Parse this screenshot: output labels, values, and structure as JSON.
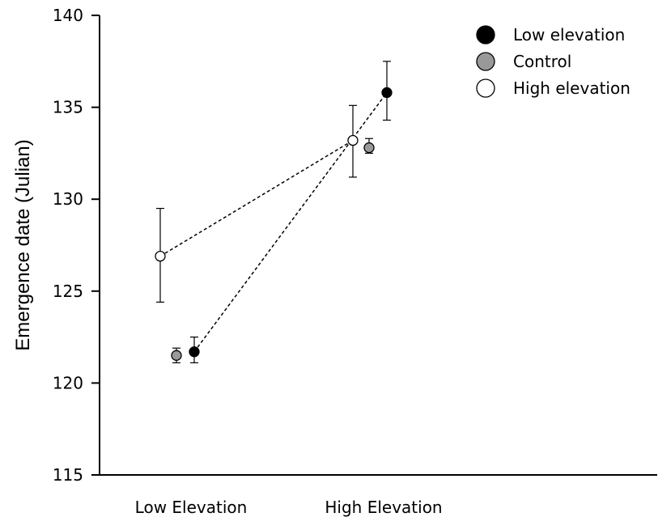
{
  "chart_data": {
    "type": "scatter",
    "title": "",
    "xlabel": "",
    "ylabel": "Emergence date (Julian)",
    "categories": [
      "Low Elevation",
      "High Elevation"
    ],
    "ylim": [
      115,
      140
    ],
    "yticks": [
      "115",
      "120",
      "125",
      "130",
      "135",
      "140"
    ],
    "grid": false,
    "legend_position": "top-right",
    "series": [
      {
        "name": "Low elevation",
        "fill": "#000000",
        "connect": true,
        "points": [
          {
            "category": "Low Elevation",
            "y": 121.7,
            "err_low": 121.1,
            "err_high": 122.5
          },
          {
            "category": "High Elevation",
            "y": 135.8,
            "err_low": 134.3,
            "err_high": 137.5
          }
        ]
      },
      {
        "name": "Control",
        "fill": "#999999",
        "connect": false,
        "points": [
          {
            "category": "Low Elevation",
            "y": 121.5,
            "err_low": 121.1,
            "err_high": 121.9
          },
          {
            "category": "High Elevation",
            "y": 132.8,
            "err_low": 132.5,
            "err_high": 133.3
          }
        ]
      },
      {
        "name": "High elevation",
        "fill": "#ffffff",
        "connect": true,
        "points": [
          {
            "category": "Low Elevation",
            "y": 126.9,
            "err_low": 124.4,
            "err_high": 129.5
          },
          {
            "category": "High Elevation",
            "y": 133.2,
            "err_low": 131.2,
            "err_high": 135.1
          }
        ]
      }
    ]
  }
}
